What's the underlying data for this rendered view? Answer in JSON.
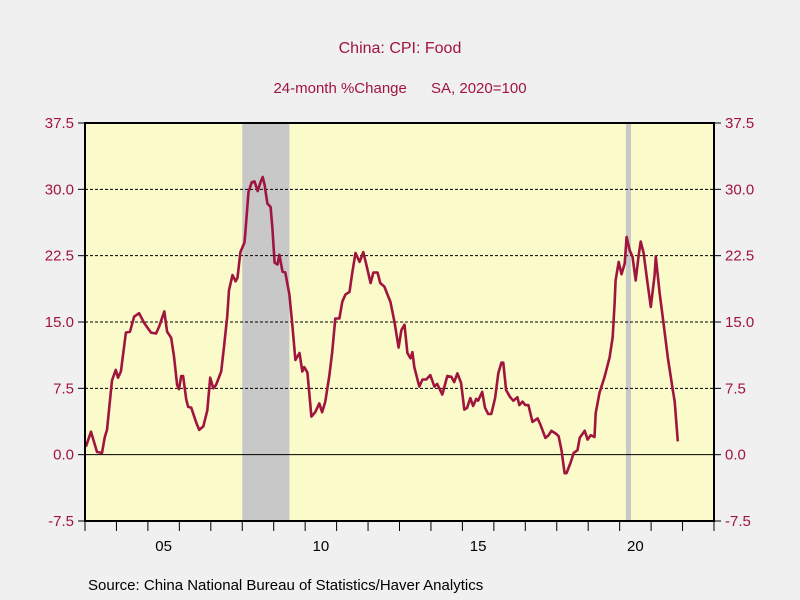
{
  "chart_data": {
    "type": "line",
    "title": "China: CPI: Food",
    "subtitle_left": "24-month %Change",
    "subtitle_right": "SA, 2020=100",
    "source": "Source:  China National Bureau of Statistics/Haver Analytics",
    "xlim": [
      2003,
      2023
    ],
    "ylim": [
      -7.5,
      37.5
    ],
    "yticks": [
      -7.5,
      0.0,
      7.5,
      15.0,
      22.5,
      30.0,
      37.5
    ],
    "ytick_labels": [
      "-7.5",
      "0.0",
      "7.5",
      "15.0",
      "22.5",
      "30.0",
      "37.5"
    ],
    "xticks": [
      2003,
      2004,
      2005,
      2006,
      2007,
      2008,
      2009,
      2010,
      2011,
      2012,
      2013,
      2014,
      2015,
      2016,
      2017,
      2018,
      2019,
      2020,
      2021,
      2022,
      2023
    ],
    "xtick_labels": [
      {
        "x": 2005.5,
        "label": "05"
      },
      {
        "x": 2010.5,
        "label": "10"
      },
      {
        "x": 2015.5,
        "label": "15"
      },
      {
        "x": 2020.5,
        "label": "20"
      }
    ],
    "gridlines": "dashed at y ticks",
    "recessions": [
      [
        2008.0,
        2009.5
      ],
      [
        2020.2,
        2020.36
      ]
    ],
    "colors": {
      "line": "#a0153e",
      "plot_bg": "#fafacb",
      "recession": "#c8c8c8",
      "text": "#a0153e",
      "page_bg": "#f0f0f0"
    },
    "series": [
      {
        "name": "China: CPI: Food 24-month %Change",
        "points": [
          [
            2003.03,
            0.9
          ],
          [
            2003.19,
            2.6
          ],
          [
            2003.38,
            0.3
          ],
          [
            2003.54,
            0.2
          ],
          [
            2003.63,
            2.0
          ],
          [
            2003.7,
            2.8
          ],
          [
            2003.86,
            8.4
          ],
          [
            2003.98,
            9.6
          ],
          [
            2004.05,
            8.7
          ],
          [
            2004.14,
            9.4
          ],
          [
            2004.3,
            13.8
          ],
          [
            2004.43,
            13.9
          ],
          [
            2004.56,
            15.6
          ],
          [
            2004.72,
            16.0
          ],
          [
            2004.88,
            14.9
          ],
          [
            2005.1,
            13.8
          ],
          [
            2005.26,
            13.7
          ],
          [
            2005.36,
            14.5
          ],
          [
            2005.52,
            16.2
          ],
          [
            2005.61,
            13.9
          ],
          [
            2005.74,
            13.2
          ],
          [
            2005.83,
            11.1
          ],
          [
            2005.93,
            7.9
          ],
          [
            2005.99,
            7.4
          ],
          [
            2006.06,
            8.9
          ],
          [
            2006.12,
            8.9
          ],
          [
            2006.22,
            6.2
          ],
          [
            2006.28,
            5.4
          ],
          [
            2006.38,
            5.3
          ],
          [
            2006.54,
            3.6
          ],
          [
            2006.63,
            2.8
          ],
          [
            2006.76,
            3.2
          ],
          [
            2006.89,
            5.0
          ],
          [
            2006.98,
            8.7
          ],
          [
            2007.08,
            7.5
          ],
          [
            2007.17,
            7.9
          ],
          [
            2007.33,
            9.4
          ],
          [
            2007.42,
            12.2
          ],
          [
            2007.52,
            15.6
          ],
          [
            2007.58,
            18.6
          ],
          [
            2007.69,
            20.3
          ],
          [
            2007.79,
            19.6
          ],
          [
            2007.85,
            20.0
          ],
          [
            2007.94,
            22.9
          ],
          [
            2008.07,
            24.0
          ],
          [
            2008.1,
            25.2
          ],
          [
            2008.2,
            29.7
          ],
          [
            2008.3,
            30.8
          ],
          [
            2008.39,
            30.9
          ],
          [
            2008.49,
            29.8
          ],
          [
            2008.58,
            30.8
          ],
          [
            2008.65,
            31.4
          ],
          [
            2008.71,
            30.5
          ],
          [
            2008.8,
            28.4
          ],
          [
            2008.9,
            28.0
          ],
          [
            2008.96,
            25.6
          ],
          [
            2009.03,
            21.7
          ],
          [
            2009.12,
            21.5
          ],
          [
            2009.18,
            22.6
          ],
          [
            2009.28,
            20.7
          ],
          [
            2009.37,
            20.6
          ],
          [
            2009.5,
            18.1
          ],
          [
            2009.59,
            14.7
          ],
          [
            2009.69,
            10.7
          ],
          [
            2009.82,
            11.5
          ],
          [
            2009.91,
            9.4
          ],
          [
            2009.97,
            9.9
          ],
          [
            2010.07,
            9.3
          ],
          [
            2010.2,
            4.3
          ],
          [
            2010.32,
            4.8
          ],
          [
            2010.45,
            5.8
          ],
          [
            2010.54,
            4.8
          ],
          [
            2010.64,
            6.0
          ],
          [
            2010.77,
            9.0
          ],
          [
            2010.86,
            11.6
          ],
          [
            2010.96,
            15.4
          ],
          [
            2011.09,
            15.4
          ],
          [
            2011.18,
            17.3
          ],
          [
            2011.28,
            18.1
          ],
          [
            2011.41,
            18.4
          ],
          [
            2011.5,
            20.6
          ],
          [
            2011.6,
            22.8
          ],
          [
            2011.73,
            21.8
          ],
          [
            2011.85,
            22.9
          ],
          [
            2011.95,
            21.4
          ],
          [
            2012.08,
            19.4
          ],
          [
            2012.17,
            20.6
          ],
          [
            2012.3,
            20.6
          ],
          [
            2012.39,
            19.4
          ],
          [
            2012.52,
            19.0
          ],
          [
            2012.62,
            18.1
          ],
          [
            2012.71,
            17.3
          ],
          [
            2012.84,
            15.0
          ],
          [
            2012.97,
            12.1
          ],
          [
            2013.06,
            14.1
          ],
          [
            2013.16,
            14.7
          ],
          [
            2013.25,
            11.5
          ],
          [
            2013.35,
            10.9
          ],
          [
            2013.41,
            11.6
          ],
          [
            2013.47,
            9.9
          ],
          [
            2013.63,
            7.7
          ],
          [
            2013.73,
            8.5
          ],
          [
            2013.85,
            8.5
          ],
          [
            2013.98,
            9.0
          ],
          [
            2014.11,
            7.7
          ],
          [
            2014.2,
            8.0
          ],
          [
            2014.36,
            6.8
          ],
          [
            2014.52,
            8.9
          ],
          [
            2014.65,
            8.8
          ],
          [
            2014.74,
            8.2
          ],
          [
            2014.84,
            9.2
          ],
          [
            2014.96,
            8.1
          ],
          [
            2015.06,
            5.1
          ],
          [
            2015.15,
            5.3
          ],
          [
            2015.25,
            6.4
          ],
          [
            2015.34,
            5.5
          ],
          [
            2015.44,
            6.3
          ],
          [
            2015.5,
            6.1
          ],
          [
            2015.63,
            7.1
          ],
          [
            2015.72,
            5.3
          ],
          [
            2015.82,
            4.6
          ],
          [
            2015.92,
            4.6
          ],
          [
            2016.04,
            6.4
          ],
          [
            2016.14,
            9.2
          ],
          [
            2016.24,
            10.4
          ],
          [
            2016.3,
            10.4
          ],
          [
            2016.39,
            7.3
          ],
          [
            2016.52,
            6.5
          ],
          [
            2016.62,
            6.1
          ],
          [
            2016.75,
            6.5
          ],
          [
            2016.81,
            5.6
          ],
          [
            2016.91,
            6.0
          ],
          [
            2017.0,
            5.6
          ],
          [
            2017.1,
            5.6
          ],
          [
            2017.23,
            3.7
          ],
          [
            2017.39,
            4.1
          ],
          [
            2017.48,
            3.4
          ],
          [
            2017.64,
            1.9
          ],
          [
            2017.74,
            2.2
          ],
          [
            2017.83,
            2.7
          ],
          [
            2017.96,
            2.4
          ],
          [
            2018.06,
            2.1
          ],
          [
            2018.15,
            0.5
          ],
          [
            2018.25,
            -2.1
          ],
          [
            2018.31,
            -2.1
          ],
          [
            2018.44,
            -0.9
          ],
          [
            2018.54,
            0.2
          ],
          [
            2018.66,
            0.5
          ],
          [
            2018.73,
            1.9
          ],
          [
            2018.89,
            2.7
          ],
          [
            2018.98,
            1.7
          ],
          [
            2019.08,
            2.2
          ],
          [
            2019.2,
            2.0
          ],
          [
            2019.24,
            4.7
          ],
          [
            2019.36,
            7.0
          ],
          [
            2019.52,
            8.8
          ],
          [
            2019.68,
            11.0
          ],
          [
            2019.78,
            13.3
          ],
          [
            2019.84,
            17.1
          ],
          [
            2019.87,
            19.7
          ],
          [
            2019.97,
            21.8
          ],
          [
            2020.06,
            20.4
          ],
          [
            2020.16,
            21.6
          ],
          [
            2020.22,
            24.6
          ],
          [
            2020.32,
            23.1
          ],
          [
            2020.41,
            22.4
          ],
          [
            2020.51,
            19.7
          ],
          [
            2020.6,
            22.4
          ],
          [
            2020.67,
            24.1
          ],
          [
            2020.76,
            22.8
          ],
          [
            2020.86,
            20.1
          ],
          [
            2020.99,
            16.7
          ],
          [
            2021.11,
            20.3
          ],
          [
            2021.15,
            22.4
          ],
          [
            2021.27,
            18.3
          ],
          [
            2021.4,
            14.7
          ],
          [
            2021.53,
            11.0
          ],
          [
            2021.69,
            7.3
          ],
          [
            2021.75,
            6.0
          ],
          [
            2021.85,
            1.5
          ]
        ]
      }
    ]
  }
}
